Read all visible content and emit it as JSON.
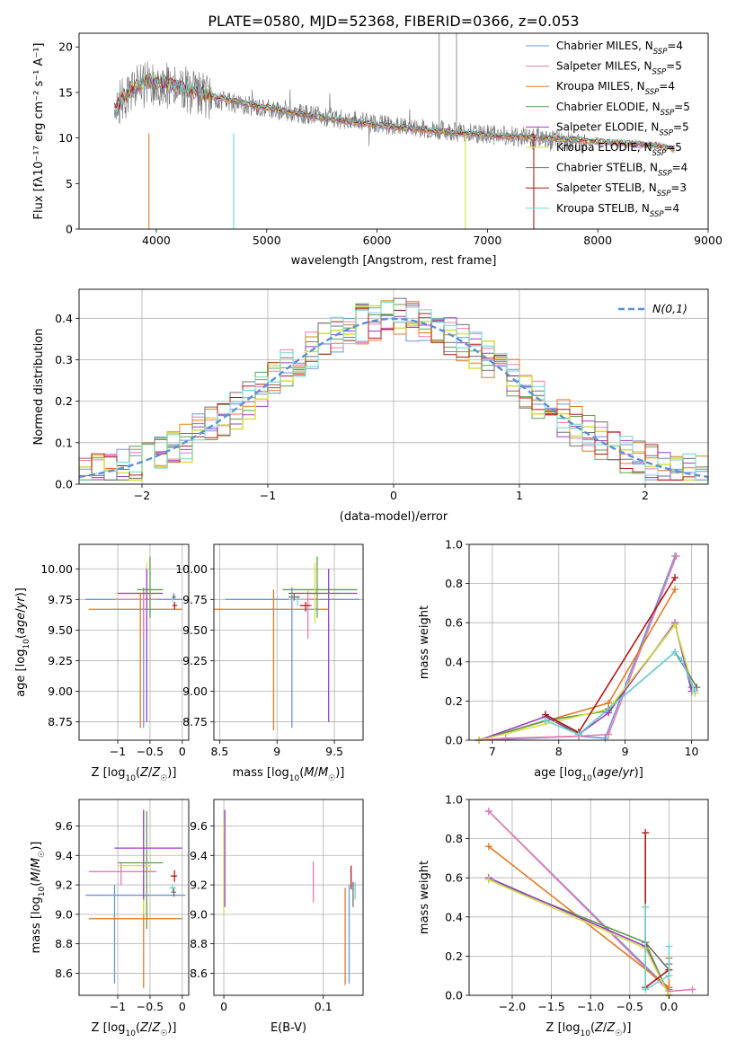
{
  "figure_title": "PLATE=0580, MJD=52368, FIBERID=0366, z=0.053",
  "colors": {
    "Chabrier MILES": "#6b95d8",
    "Salpeter MILES": "#e87ab0",
    "Kroupa MILES": "#e07b25",
    "Chabrier ELODIE": "#5f9e4a",
    "Salpeter ELODIE": "#9b3fc4",
    "Kroupa ELODIE": "#d6df4a",
    "Chabrier STELIB": "#707070",
    "Salpeter STELIB": "#b01919",
    "Kroupa STELIB": "#6fd3d3",
    "normal": "#5b8fd9"
  },
  "chart_data": [
    {
      "type": "line",
      "panel": "spectrum",
      "title": "PLATE=0580, MJD=52368, FIBERID=0366, z=0.053",
      "xlabel": "wavelength [Angstrom, rest frame]",
      "ylabel": "Flux [fλ10⁻¹⁷ erg cm⁻² s⁻¹ A⁻¹]",
      "xlim": [
        3300,
        9000
      ],
      "ylim": [
        0,
        21.5
      ],
      "xticks": [
        4000,
        5000,
        6000,
        7000,
        8000,
        9000
      ],
      "yticks": [
        0,
        5,
        10,
        15,
        20
      ],
      "grid": false,
      "legend_position": "top-right",
      "legend": [
        {
          "key": "Chabrier MILES",
          "base": "Chabrier MILES, N",
          "n": "4"
        },
        {
          "key": "Salpeter MILES",
          "base": "Salpeter MILES, N",
          "n": "5"
        },
        {
          "key": "Kroupa MILES",
          "base": "Kroupa MILES, N",
          "n": "4"
        },
        {
          "key": "Chabrier ELODIE",
          "base": "Chabrier ELODIE, N",
          "n": "5"
        },
        {
          "key": "Salpeter ELODIE",
          "base": "Salpeter ELODIE, N",
          "n": "5"
        },
        {
          "key": "Kroupa ELODIE",
          "base": "Kroupa ELODIE, N",
          "n": "5"
        },
        {
          "key": "Chabrier STELIB",
          "base": "Chabrier STELIB, N",
          "n": "4"
        },
        {
          "key": "Salpeter STELIB",
          "base": "Salpeter STELIB, N",
          "n": "3"
        },
        {
          "key": "Kroupa STELIB",
          "base": "Kroupa STELIB, N",
          "n": "4"
        }
      ],
      "legend_sub": "SSP",
      "observed_continuum": [
        [
          3620,
          13.6
        ],
        [
          3800,
          15.3
        ],
        [
          4000,
          16.2
        ],
        [
          4200,
          15.3
        ],
        [
          4500,
          14.3
        ],
        [
          5000,
          13.2
        ],
        [
          5500,
          12.3
        ],
        [
          6000,
          11.6
        ],
        [
          6500,
          10.9
        ],
        [
          7000,
          10.4
        ],
        [
          7500,
          10.0
        ],
        [
          7900,
          9.4
        ]
      ],
      "model_continuum": [
        [
          3620,
          13.0
        ],
        [
          3700,
          14.4
        ],
        [
          3900,
          16.3
        ],
        [
          4100,
          16.0
        ],
        [
          4300,
          15.2
        ],
        [
          4600,
          14.3
        ],
        [
          5000,
          13.3
        ],
        [
          5500,
          12.2
        ],
        [
          6000,
          11.4
        ],
        [
          6500,
          10.8
        ],
        [
          7000,
          10.3
        ],
        [
          7500,
          10.0
        ],
        [
          8000,
          9.6
        ],
        [
          8500,
          9.2
        ],
        [
          8700,
          8.8
        ]
      ],
      "features": [
        {
          "x": 3933,
          "y": 0,
          "series": "Kroupa MILES"
        },
        {
          "x": 4700,
          "y": 0,
          "series": "Kroupa STELIB"
        },
        {
          "x": 6800,
          "y": 0,
          "series": "Kroupa ELODIE"
        },
        {
          "x": 7420,
          "y": 0,
          "series": "Salpeter STELIB"
        },
        {
          "x": 6563,
          "y": 21.5,
          "series": "observed"
        },
        {
          "x": 6720,
          "y": 21.5,
          "series": "observed"
        }
      ]
    },
    {
      "type": "line",
      "panel": "residuals",
      "xlabel": "(data-model)/error",
      "ylabel": "Normed distribution",
      "xlim": [
        -2.5,
        2.5
      ],
      "ylim": [
        0,
        0.47
      ],
      "xticks": [
        -2,
        -1,
        0,
        1,
        2
      ],
      "yticks": [
        0.0,
        0.1,
        0.2,
        0.3,
        0.4
      ],
      "grid": true,
      "legend_position": "top-right",
      "normal_label": "N(0,1)",
      "bin_width": 0.1
    },
    {
      "type": "scatter",
      "panel": "age_vs_Z",
      "xlabel": "Z [log10(Z/Z☉)]",
      "ylabel": "age [log10(age/yr)]",
      "xlim": [
        -1.6,
        0.1
      ],
      "ylim": [
        8.6,
        10.2
      ],
      "xticks": [
        -1,
        -0.5,
        0
      ],
      "yticks": [
        8.75,
        9.0,
        9.25,
        9.5,
        9.75,
        10.0
      ],
      "grid": true,
      "points": [
        {
          "series": "Chabrier MILES",
          "x": -0.6,
          "xlo": -1.5,
          "xhi": 0.0,
          "y": 9.75,
          "ylo": 8.7,
          "yhi": 9.85
        },
        {
          "series": "Kroupa MILES",
          "x": -0.65,
          "xlo": -1.45,
          "xhi": 0.0,
          "y": 9.67,
          "ylo": 8.7,
          "yhi": 9.8
        },
        {
          "series": "Salpeter MILES",
          "x": -0.6,
          "xlo": -1.05,
          "xhi": -0.4,
          "y": 9.75,
          "ylo": 9.43,
          "yhi": 9.82
        },
        {
          "series": "Chabrier ELODIE",
          "x": -0.5,
          "xlo": -0.7,
          "xhi": -0.3,
          "y": 9.83,
          "ylo": 9.6,
          "yhi": 10.1
        },
        {
          "series": "Kroupa ELODIE",
          "x": -0.55,
          "xlo": -1.05,
          "xhi": -0.3,
          "y": 9.8,
          "ylo": 9.55,
          "yhi": 10.05
        },
        {
          "series": "Salpeter ELODIE",
          "x": -0.55,
          "xlo": -1.0,
          "xhi": -0.3,
          "y": 9.8,
          "ylo": 8.75,
          "yhi": 10.0
        },
        {
          "series": "Salpeter STELIB",
          "x": -0.12,
          "xlo": -0.15,
          "xhi": -0.08,
          "y": 9.7,
          "ylo": 9.67,
          "yhi": 9.73
        },
        {
          "series": "Kroupa STELIB",
          "x": -0.15,
          "xlo": -0.17,
          "xhi": -0.12,
          "y": 9.75,
          "ylo": 9.73,
          "yhi": 9.78
        },
        {
          "series": "Chabrier STELIB",
          "x": -0.13,
          "xlo": -0.15,
          "xhi": -0.1,
          "y": 9.77,
          "ylo": 9.75,
          "yhi": 9.8
        }
      ]
    },
    {
      "type": "scatter",
      "panel": "age_vs_mass",
      "xlabel": "mass [log10(M/M☉)]",
      "xlim": [
        8.45,
        9.75
      ],
      "ylim": [
        8.6,
        10.2
      ],
      "xticks": [
        8.5,
        9.0,
        9.5
      ],
      "yticks": [
        8.75,
        9.0,
        9.25,
        9.5,
        9.75,
        10.0
      ],
      "grid": true,
      "points": [
        {
          "series": "Chabrier MILES",
          "x": 9.13,
          "xlo": 8.55,
          "xhi": 9.72,
          "y": 9.75,
          "ylo": 8.7,
          "yhi": 9.85
        },
        {
          "series": "Kroupa MILES",
          "x": 8.97,
          "xlo": 8.45,
          "xhi": 9.45,
          "y": 9.67,
          "ylo": 8.68,
          "yhi": 9.83
        },
        {
          "series": "Salpeter MILES",
          "x": 9.27,
          "xlo": 9.15,
          "xhi": 9.37,
          "y": 9.75,
          "ylo": 9.43,
          "yhi": 9.82
        },
        {
          "series": "Chabrier ELODIE",
          "x": 9.35,
          "xlo": 9.05,
          "xhi": 9.7,
          "y": 9.83,
          "ylo": 9.6,
          "yhi": 10.1
        },
        {
          "series": "Kroupa ELODIE",
          "x": 9.33,
          "xlo": 9.1,
          "xhi": 9.55,
          "y": 9.8,
          "ylo": 9.55,
          "yhi": 10.05
        },
        {
          "series": "Salpeter ELODIE",
          "x": 9.45,
          "xlo": 9.1,
          "xhi": 9.7,
          "y": 9.8,
          "ylo": 8.75,
          "yhi": 10.0
        },
        {
          "series": "Salpeter STELIB",
          "x": 9.25,
          "xlo": 9.2,
          "xhi": 9.3,
          "y": 9.7,
          "ylo": 9.65,
          "yhi": 9.73
        },
        {
          "series": "Kroupa STELIB",
          "x": 9.18,
          "xlo": 9.1,
          "xhi": 9.25,
          "y": 9.75,
          "ylo": 9.7,
          "yhi": 9.78
        },
        {
          "series": "Chabrier STELIB",
          "x": 9.15,
          "xlo": 9.1,
          "xhi": 9.2,
          "y": 9.77,
          "ylo": 9.74,
          "yhi": 9.8
        }
      ]
    },
    {
      "type": "line",
      "panel": "weight_vs_age",
      "xlabel": "age [log10(age/yr)]",
      "ylabel": "mass weight",
      "xlim": [
        6.65,
        10.25
      ],
      "ylim": [
        0,
        1.0
      ],
      "xticks": [
        7,
        8,
        9,
        10
      ],
      "yticks": [
        0.0,
        0.2,
        0.4,
        0.6,
        0.8,
        1.0
      ],
      "grid": true,
      "series": [
        {
          "name": "Chabrier MILES",
          "points": [
            [
              6.8,
              0.0
            ],
            [
              8.3,
              0.02
            ],
            [
              8.7,
              0.01
            ],
            [
              9.75,
              0.94
            ]
          ]
        },
        {
          "name": "Salpeter MILES",
          "points": [
            [
              6.8,
              0.0
            ],
            [
              7.2,
              0.01
            ],
            [
              8.3,
              0.02
            ],
            [
              8.75,
              0.03
            ],
            [
              9.77,
              0.94
            ]
          ]
        },
        {
          "name": "Kroupa MILES",
          "points": [
            [
              6.8,
              0.0
            ],
            [
              8.75,
              0.19
            ],
            [
              9.75,
              0.77
            ]
          ]
        },
        {
          "name": "Chabrier ELODIE",
          "points": [
            [
              6.8,
              0.0
            ],
            [
              7.8,
              0.1
            ],
            [
              8.75,
              0.15
            ],
            [
              9.75,
              0.59
            ],
            [
              10.0,
              0.27
            ]
          ]
        },
        {
          "name": "Salpeter ELODIE",
          "points": [
            [
              6.8,
              0.0
            ],
            [
              7.8,
              0.12
            ],
            [
              8.3,
              0.03
            ],
            [
              8.75,
              0.14
            ],
            [
              9.75,
              0.6
            ],
            [
              10.0,
              0.25
            ]
          ]
        },
        {
          "name": "Kroupa ELODIE",
          "points": [
            [
              6.8,
              0.0
            ],
            [
              8.75,
              0.16
            ],
            [
              9.75,
              0.59
            ],
            [
              10.05,
              0.24
            ]
          ]
        },
        {
          "name": "Chabrier STELIB",
          "points": [
            [
              7.8,
              0.13
            ],
            [
              8.3,
              0.03
            ],
            [
              8.75,
              0.16
            ],
            [
              9.75,
              0.45
            ],
            [
              10.08,
              0.27
            ]
          ]
        },
        {
          "name": "Salpeter STELIB",
          "points": [
            [
              7.8,
              0.13
            ],
            [
              8.3,
              0.04
            ],
            [
              9.75,
              0.83
            ]
          ]
        },
        {
          "name": "Kroupa STELIB",
          "points": [
            [
              7.8,
              0.1
            ],
            [
              8.3,
              0.03
            ],
            [
              9.75,
              0.45
            ],
            [
              9.85,
              0.41
            ],
            [
              10.05,
              0.25
            ]
          ]
        }
      ]
    },
    {
      "type": "scatter",
      "panel": "mass_vs_Z",
      "xlabel": "Z [log10(Z/Z☉)]",
      "ylabel": "mass [log10(M/M☉)]",
      "xlim": [
        -1.6,
        0.1
      ],
      "ylim": [
        8.45,
        9.78
      ],
      "xticks": [
        -1,
        -0.5,
        0
      ],
      "yticks": [
        8.6,
        8.8,
        9.0,
        9.2,
        9.4,
        9.6
      ],
      "grid": true,
      "points": [
        {
          "series": "Chabrier MILES",
          "x": -1.05,
          "xlo": -1.5,
          "xhi": 0.05,
          "y": 9.13,
          "ylo": 8.53,
          "yhi": 9.2
        },
        {
          "series": "Kroupa MILES",
          "x": -0.6,
          "xlo": -1.45,
          "xhi": 0.0,
          "y": 8.97,
          "ylo": 8.5,
          "yhi": 9.2
        },
        {
          "series": "Salpeter MILES",
          "x": -0.95,
          "xlo": -1.45,
          "xhi": -0.4,
          "y": 9.29,
          "ylo": 9.2,
          "yhi": 9.35
        },
        {
          "series": "Chabrier ELODIE",
          "x": -0.55,
          "xlo": -1.0,
          "xhi": -0.3,
          "y": 9.35,
          "ylo": 8.9,
          "yhi": 9.7
        },
        {
          "series": "Kroupa ELODIE",
          "x": -0.6,
          "xlo": -1.0,
          "xhi": -0.5,
          "y": 9.33,
          "ylo": 9.0,
          "yhi": 9.7
        },
        {
          "series": "Salpeter ELODIE",
          "x": -0.6,
          "xlo": -1.05,
          "xhi": 0.0,
          "y": 9.45,
          "ylo": 9.1,
          "yhi": 9.71
        },
        {
          "series": "Salpeter STELIB",
          "x": -0.12,
          "xlo": -0.18,
          "xhi": -0.08,
          "y": 9.26,
          "ylo": 9.22,
          "yhi": 9.3
        },
        {
          "series": "Kroupa STELIB",
          "x": -0.15,
          "xlo": -0.2,
          "xhi": -0.1,
          "y": 9.18,
          "ylo": 9.15,
          "yhi": 9.2
        },
        {
          "series": "Chabrier STELIB",
          "x": -0.13,
          "xlo": -0.17,
          "xhi": -0.1,
          "y": 9.15,
          "ylo": 9.12,
          "yhi": 9.18
        }
      ]
    },
    {
      "type": "scatter",
      "panel": "mass_vs_EBV",
      "xlabel": "E(B-V)",
      "xlim": [
        -0.01,
        0.14
      ],
      "ylim": [
        8.45,
        9.78
      ],
      "xticks": [
        0.0,
        0.1
      ],
      "yticks": [
        8.6,
        8.8,
        9.0,
        9.2,
        9.4,
        9.6
      ],
      "grid": true,
      "points": [
        {
          "series": "Kroupa ELODIE",
          "x": 0.0,
          "y": 9.35,
          "ylo": 9.0,
          "yhi": 9.65
        },
        {
          "series": "Salpeter ELODIE",
          "x": 0.001,
          "y": 9.45,
          "ylo": 9.05,
          "yhi": 9.71
        },
        {
          "series": "Salpeter MILES",
          "x": 0.09,
          "y": 9.22,
          "ylo": 9.08,
          "yhi": 9.36
        },
        {
          "series": "Kroupa MILES",
          "x": 0.122,
          "y": 8.97,
          "ylo": 8.52,
          "yhi": 9.18
        },
        {
          "series": "Chabrier MILES",
          "x": 0.126,
          "y": 9.13,
          "ylo": 8.53,
          "yhi": 9.2
        },
        {
          "series": "Salpeter STELIB",
          "x": 0.128,
          "y": 9.25,
          "ylo": 9.17,
          "yhi": 9.33
        },
        {
          "series": "Chabrier STELIB",
          "x": 0.13,
          "y": 9.15,
          "ylo": 9.05,
          "yhi": 9.22
        },
        {
          "series": "Kroupa STELIB",
          "x": 0.132,
          "y": 9.18,
          "ylo": 9.1,
          "yhi": 9.22
        }
      ]
    },
    {
      "type": "line",
      "panel": "weight_vs_Z",
      "xlabel": "Z [log10(Z/Z☉)]",
      "ylabel": "mass weight",
      "xlim": [
        -2.55,
        0.5
      ],
      "ylim": [
        0,
        1.0
      ],
      "xticks": [
        -2.0,
        -1.5,
        -1.0,
        -0.5,
        0.0
      ],
      "yticks": [
        0.0,
        0.2,
        0.4,
        0.6,
        0.8,
        1.0
      ],
      "grid": true,
      "series": [
        {
          "name": "Chabrier MILES",
          "points": [
            [
              -2.3,
              0.94
            ],
            [
              0.0,
              0.03
            ],
            [
              0.0,
              0.02
            ]
          ]
        },
        {
          "name": "Salpeter MILES",
          "points": [
            [
              -2.3,
              0.94
            ],
            [
              0.0,
              0.02
            ],
            [
              0.3,
              0.03
            ]
          ]
        },
        {
          "name": "Kroupa MILES",
          "points": [
            [
              -2.3,
              0.76
            ],
            [
              0.0,
              0.04
            ],
            [
              0.0,
              0.19
            ]
          ]
        },
        {
          "name": "Chabrier ELODIE",
          "points": [
            [
              -2.3,
              0.59
            ],
            [
              -0.3,
              0.27
            ],
            [
              0.0,
              0.0
            ]
          ]
        },
        {
          "name": "Salpeter ELODIE",
          "points": [
            [
              -2.3,
              0.6
            ],
            [
              -0.3,
              0.25
            ],
            [
              0.0,
              0.0
            ]
          ]
        },
        {
          "name": "Kroupa ELODIE",
          "points": [
            [
              -2.3,
              0.59
            ],
            [
              -0.3,
              0.24
            ],
            [
              0.0,
              0.0
            ]
          ]
        },
        {
          "name": "Chabrier STELIB",
          "points": [
            [
              -0.3,
              0.45
            ],
            [
              -0.3,
              0.27
            ],
            [
              0.0,
              0.13
            ],
            [
              0.0,
              0.16
            ]
          ]
        },
        {
          "name": "Salpeter STELIB",
          "points": [
            [
              -0.3,
              0.83
            ],
            [
              -0.3,
              0.04
            ],
            [
              0.0,
              0.13
            ]
          ]
        },
        {
          "name": "Kroupa STELIB",
          "points": [
            [
              -0.3,
              0.45
            ],
            [
              -0.3,
              0.03
            ],
            [
              0.0,
              0.1
            ],
            [
              0.0,
              0.25
            ]
          ]
        }
      ]
    }
  ]
}
